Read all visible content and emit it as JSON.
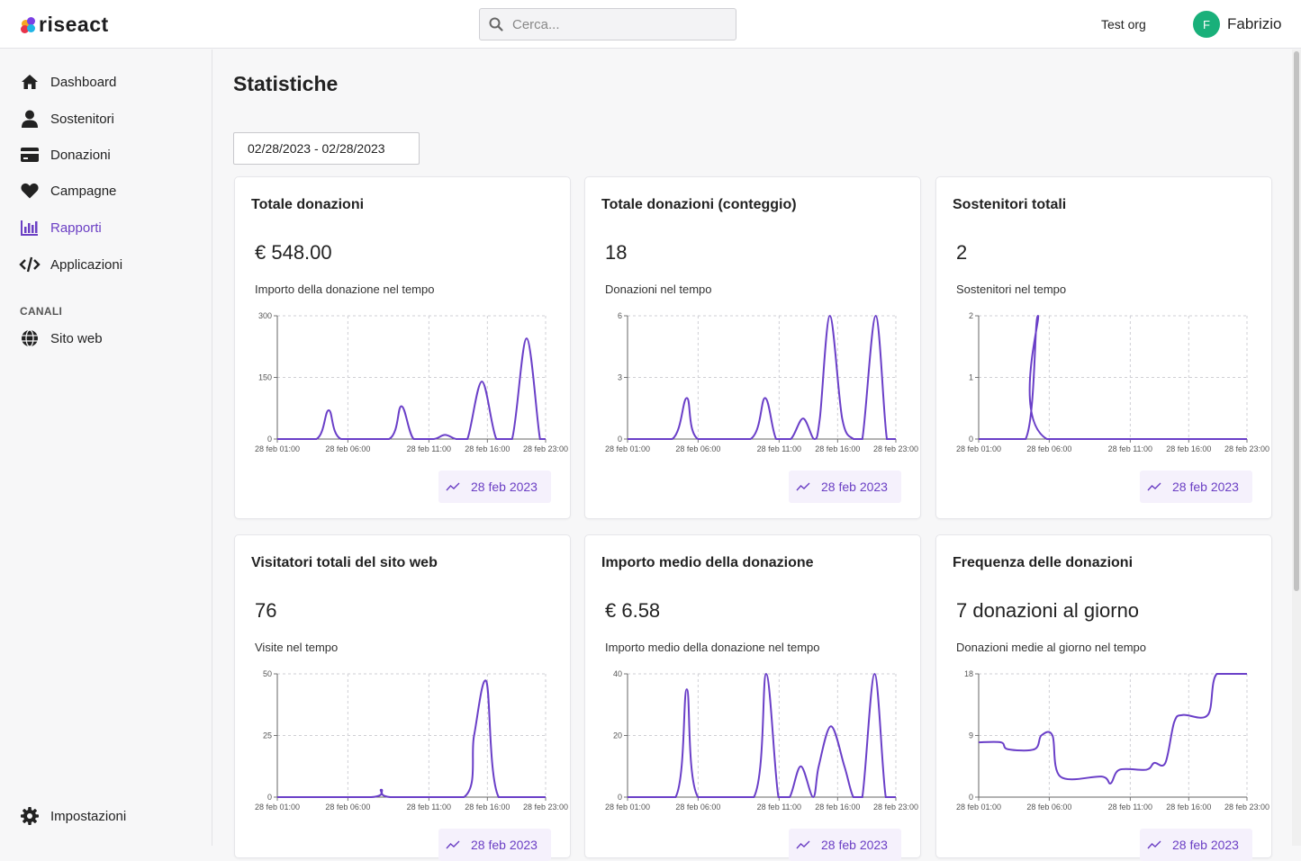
{
  "header": {
    "logo_text": "riseact",
    "search_placeholder": "Cerca...",
    "org_name": "Test org",
    "user_initial": "F",
    "user_name": "Fabrizio"
  },
  "sidebar": {
    "items": [
      {
        "label": "Dashboard",
        "icon": "home-icon"
      },
      {
        "label": "Sostenitori",
        "icon": "user-icon"
      },
      {
        "label": "Donazioni",
        "icon": "credit-card-icon"
      },
      {
        "label": "Campagne",
        "icon": "heart-icon"
      },
      {
        "label": "Rapporti",
        "icon": "bar-chart-icon",
        "active": true
      },
      {
        "label": "Applicazioni",
        "icon": "code-icon"
      }
    ],
    "section_label": "CANALI",
    "channels": [
      {
        "label": "Sito web",
        "icon": "globe-icon"
      }
    ],
    "settings_label": "Impostazioni"
  },
  "main": {
    "title": "Statistiche",
    "date_range": "02/28/2023 - 02/28/2023"
  },
  "colors": {
    "accent": "#6b3fc4",
    "line": "#6a3fc8",
    "avatar": "#19b07a"
  },
  "cards": [
    {
      "title": "Totale donazioni",
      "value": "€ 548.00",
      "subtitle": "Importo della donazione nel tempo",
      "badge": "28 feb 2023"
    },
    {
      "title": "Totale donazioni (conteggio)",
      "value": "18",
      "subtitle": "Donazioni nel tempo",
      "badge": "28 feb 2023"
    },
    {
      "title": "Sostenitori totali",
      "value": "2",
      "subtitle": "Sostenitori nel tempo",
      "badge": "28 feb 2023"
    },
    {
      "title": "Visitatori totali del sito web",
      "value": "76",
      "subtitle": "Visite nel tempo",
      "badge": "28 feb 2023"
    },
    {
      "title": "Importo medio della donazione",
      "value": "€ 6.58",
      "subtitle": "Importo medio della donazione nel tempo",
      "badge": "28 feb 2023"
    },
    {
      "title": "Frequenza delle donazioni",
      "value": "7 donazioni al giorno",
      "subtitle": "Donazioni medie al giorno nel tempo",
      "badge": "28 feb 2023"
    }
  ],
  "chart_data": [
    {
      "type": "line",
      "x_ticks": [
        "28 feb 01:00",
        "28 feb 06:00",
        "28 feb 11:00",
        "28 feb 16:00",
        "28 feb 23:00"
      ],
      "y_ticks": [
        "0",
        "150",
        "300"
      ],
      "ylim": [
        0,
        300
      ],
      "xlim": [
        0,
        24
      ],
      "grid": true,
      "points": [
        [
          0,
          0
        ],
        [
          3.5,
          0
        ],
        [
          4.6,
          70
        ],
        [
          5.7,
          0
        ],
        [
          10,
          0
        ],
        [
          11.1,
          80
        ],
        [
          12.2,
          0
        ],
        [
          14,
          0
        ],
        [
          15,
          10
        ],
        [
          16,
          0
        ],
        [
          17,
          0
        ],
        [
          18.3,
          140
        ],
        [
          19.6,
          0
        ],
        [
          21,
          0
        ],
        [
          22.3,
          245
        ],
        [
          23.5,
          0
        ],
        [
          24,
          0
        ]
      ]
    },
    {
      "type": "line",
      "x_ticks": [
        "28 feb 01:00",
        "28 feb 06:00",
        "28 feb 11:00",
        "28 feb 16:00",
        "28 feb 23:00"
      ],
      "y_ticks": [
        "0",
        "3",
        "6"
      ],
      "ylim": [
        0,
        6
      ],
      "xlim": [
        0,
        24
      ],
      "grid": true,
      "points": [
        [
          0,
          0
        ],
        [
          4,
          0
        ],
        [
          5.3,
          2
        ],
        [
          6.3,
          0
        ],
        [
          11,
          0
        ],
        [
          12.3,
          2
        ],
        [
          13.3,
          0
        ],
        [
          14.6,
          0
        ],
        [
          15.7,
          1
        ],
        [
          16.7,
          0
        ],
        [
          17.2,
          1
        ],
        [
          18.1,
          6
        ],
        [
          19.2,
          1
        ],
        [
          20.2,
          0
        ],
        [
          21,
          0
        ],
        [
          22.2,
          6
        ],
        [
          23.2,
          0
        ],
        [
          24,
          0
        ]
      ]
    },
    {
      "type": "line",
      "x_ticks": [
        "28 feb 01:00",
        "28 feb 06:00",
        "28 feb 11:00",
        "28 feb 16:00",
        "28 feb 23:00"
      ],
      "y_ticks": [
        "0",
        "1",
        "2"
      ],
      "ylim": [
        0,
        2
      ],
      "xlim": [
        0,
        24
      ],
      "grid": true,
      "points": [
        [
          0,
          0
        ],
        [
          4.2,
          0
        ],
        [
          5.3,
          2
        ],
        [
          6.1,
          0
        ],
        [
          24,
          0
        ]
      ]
    },
    {
      "type": "line",
      "x_ticks": [
        "28 feb 01:00",
        "28 feb 06:00",
        "28 feb 11:00",
        "28 feb 16:00",
        "28 feb 23:00"
      ],
      "y_ticks": [
        "0",
        "25",
        "50"
      ],
      "ylim": [
        0,
        50
      ],
      "xlim": [
        0,
        24
      ],
      "grid": true,
      "points": [
        [
          0,
          0
        ],
        [
          8.4,
          0
        ],
        [
          9.3,
          3
        ],
        [
          10.1,
          0
        ],
        [
          16.7,
          0
        ],
        [
          17.6,
          25
        ],
        [
          18.7,
          47
        ],
        [
          19.8,
          0
        ],
        [
          24,
          0
        ]
      ]
    },
    {
      "type": "line",
      "x_ticks": [
        "28 feb 01:00",
        "28 feb 06:00",
        "28 feb 11:00",
        "28 feb 16:00",
        "28 feb 23:00"
      ],
      "y_ticks": [
        "0",
        "20",
        "40"
      ],
      "ylim": [
        0,
        40
      ],
      "xlim": [
        0,
        24
      ],
      "grid": true,
      "points": [
        [
          0,
          0
        ],
        [
          4.3,
          0
        ],
        [
          5.3,
          35
        ],
        [
          6.3,
          0
        ],
        [
          11.3,
          0
        ],
        [
          12.4,
          40
        ],
        [
          13.5,
          0
        ],
        [
          14.5,
          0
        ],
        [
          15.5,
          10
        ],
        [
          16.6,
          0
        ],
        [
          17.1,
          10
        ],
        [
          18.2,
          23
        ],
        [
          19.4,
          10
        ],
        [
          20.2,
          0
        ],
        [
          21,
          0
        ],
        [
          22.1,
          40
        ],
        [
          23.1,
          0
        ],
        [
          24,
          0
        ]
      ]
    },
    {
      "type": "line",
      "x_ticks": [
        "28 feb 01:00",
        "28 feb 06:00",
        "28 feb 11:00",
        "28 feb 16:00",
        "28 feb 23:00"
      ],
      "y_ticks": [
        "0",
        "9",
        "18"
      ],
      "ylim": [
        0,
        18
      ],
      "xlim": [
        0,
        24
      ],
      "grid": true,
      "points": [
        [
          0,
          8
        ],
        [
          2,
          8
        ],
        [
          2.6,
          7
        ],
        [
          5,
          7
        ],
        [
          5.6,
          9
        ],
        [
          6.6,
          9
        ],
        [
          7.3,
          3
        ],
        [
          11,
          3
        ],
        [
          11.8,
          2
        ],
        [
          12.6,
          4
        ],
        [
          15,
          4
        ],
        [
          15.7,
          5
        ],
        [
          16.7,
          5
        ],
        [
          17.5,
          11
        ],
        [
          18.3,
          12
        ],
        [
          20.5,
          12
        ],
        [
          21.3,
          18
        ],
        [
          24,
          18
        ]
      ]
    }
  ]
}
